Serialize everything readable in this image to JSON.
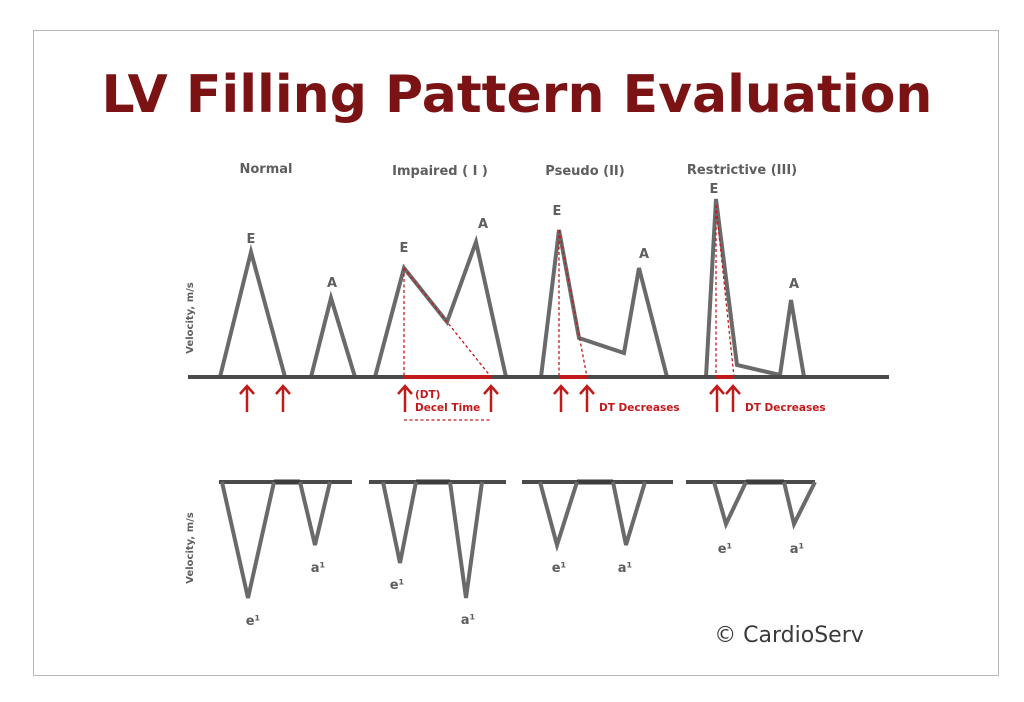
{
  "title": "LV Filling Pattern Evaluation",
  "copyright": "© CardioServ",
  "axis_label": "Velocity, m/s",
  "panels": [
    {
      "label": "Normal",
      "peak_e": "E",
      "peak_a": "A",
      "tissue_e": "e¹",
      "tissue_a": "a¹"
    },
    {
      "label": "Impaired ( I )",
      "peak_e": "E",
      "peak_a": "A",
      "tissue_e": "e¹",
      "tissue_a": "a¹",
      "dt_label": "(DT)",
      "dt_text": "Decel Time"
    },
    {
      "label": "Pseudo (II)",
      "peak_e": "E",
      "peak_a": "A",
      "tissue_e": "e¹",
      "tissue_a": "a¹",
      "dt_text": "DT Decreases"
    },
    {
      "label": "Restrictive (III)",
      "peak_e": "E",
      "peak_a": "A",
      "tissue_e": "e¹",
      "tissue_a": "a¹",
      "dt_text": "DT Decreases"
    }
  ],
  "colors": {
    "title": "#7b1214",
    "accent": "#c21a1a",
    "wave": "#6a6a6a"
  }
}
